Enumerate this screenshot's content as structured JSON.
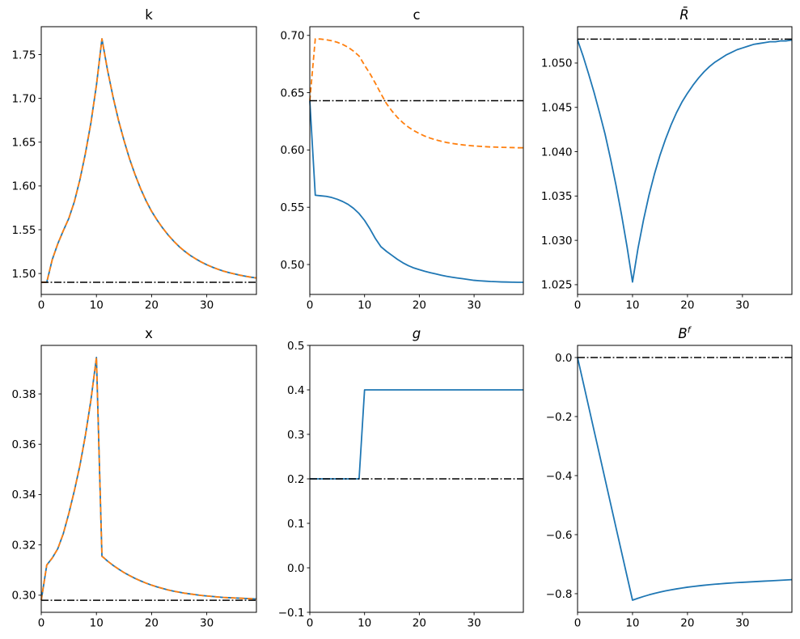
{
  "colors": {
    "series_blue": "#1f77b4",
    "series_orange": "#ff7f0e",
    "reference_black": "#000000",
    "axes": "#000000",
    "background": "#ffffff"
  },
  "x_values": [
    0,
    1,
    2,
    3,
    4,
    5,
    6,
    7,
    8,
    9,
    10,
    11,
    12,
    13,
    14,
    15,
    16,
    17,
    18,
    19,
    20,
    21,
    22,
    23,
    24,
    25,
    26,
    27,
    28,
    29,
    30,
    31,
    32,
    33,
    34,
    35,
    36,
    37,
    38,
    39
  ],
  "xticks": {
    "values": [
      0,
      10,
      20,
      30
    ],
    "labels": [
      "0",
      "10",
      "20",
      "30"
    ]
  },
  "chart_data": [
    {
      "id": "k",
      "type": "line",
      "title": {
        "text": "k",
        "superscript": "",
        "italic": false
      },
      "xlabel": "",
      "ylabel": "",
      "xlim": [
        0,
        39
      ],
      "ylim": [
        1.4761,
        1.7819
      ],
      "grid": false,
      "legend": false,
      "yticks": {
        "values": [
          1.5,
          1.55,
          1.6,
          1.65,
          1.7,
          1.75
        ],
        "labels": [
          "1.50",
          "1.55",
          "1.60",
          "1.65",
          "1.70",
          "1.75"
        ]
      },
      "reference": {
        "value": 1.49,
        "style": "dashdot",
        "color": "#000000"
      },
      "series": [
        {
          "name": "blue-solid",
          "color": "#1f77b4",
          "dash": false,
          "values": [
            1.49,
            1.49,
            1.516,
            1.534,
            1.549,
            1.563,
            1.582,
            1.607,
            1.637,
            1.672,
            1.715,
            1.768,
            1.7327,
            1.702,
            1.675,
            1.652,
            1.631,
            1.613,
            1.597,
            1.583,
            1.571,
            1.561,
            1.552,
            1.544,
            1.537,
            1.5307,
            1.5254,
            1.5207,
            1.5167,
            1.5131,
            1.51,
            1.5073,
            1.5049,
            1.5028,
            1.501,
            1.4995,
            1.4981,
            1.4969,
            1.4958,
            1.4949
          ]
        },
        {
          "name": "orange-dashed",
          "color": "#ff7f0e",
          "dash": true,
          "values": [
            1.49,
            1.49,
            1.516,
            1.534,
            1.549,
            1.563,
            1.582,
            1.607,
            1.637,
            1.672,
            1.715,
            1.768,
            1.7327,
            1.702,
            1.675,
            1.652,
            1.631,
            1.613,
            1.597,
            1.583,
            1.571,
            1.561,
            1.552,
            1.544,
            1.537,
            1.5307,
            1.5254,
            1.5207,
            1.5167,
            1.5131,
            1.51,
            1.5073,
            1.5049,
            1.5028,
            1.501,
            1.4995,
            1.4981,
            1.4969,
            1.4958,
            1.4949
          ]
        }
      ]
    },
    {
      "id": "c",
      "type": "line",
      "title": {
        "text": "c",
        "superscript": "",
        "italic": false
      },
      "xlabel": "",
      "ylabel": "",
      "xlim": [
        0,
        39
      ],
      "ylim": [
        0.4739,
        0.7076
      ],
      "grid": false,
      "legend": false,
      "yticks": {
        "values": [
          0.5,
          0.55,
          0.6,
          0.65,
          0.7
        ],
        "labels": [
          "0.50",
          "0.55",
          "0.60",
          "0.65",
          "0.70"
        ]
      },
      "reference": {
        "value": 0.643,
        "style": "dashdot",
        "color": "#000000"
      },
      "series": [
        {
          "name": "blue-solid",
          "color": "#1f77b4",
          "dash": false,
          "values": [
            0.643,
            0.5605,
            0.56,
            0.5595,
            0.5585,
            0.557,
            0.555,
            0.5525,
            0.549,
            0.5445,
            0.5385,
            0.531,
            0.5225,
            0.5155,
            0.5115,
            0.508,
            0.5045,
            0.5015,
            0.499,
            0.497,
            0.4955,
            0.4941,
            0.4929,
            0.4918,
            0.4907,
            0.4897,
            0.4889,
            0.4882,
            0.4876,
            0.4869,
            0.4862,
            0.4858,
            0.4855,
            0.4852,
            0.485,
            0.4848,
            0.4847,
            0.4846,
            0.4845,
            0.4845
          ]
        },
        {
          "name": "orange-dashed",
          "color": "#ff7f0e",
          "dash": true,
          "values": [
            0.643,
            0.697,
            0.6968,
            0.6962,
            0.6953,
            0.694,
            0.6921,
            0.6896,
            0.6862,
            0.682,
            0.674,
            0.6665,
            0.658,
            0.649,
            0.6405,
            0.634,
            0.6284,
            0.6238,
            0.62,
            0.6169,
            0.6143,
            0.6121,
            0.6103,
            0.6088,
            0.6076,
            0.6065,
            0.6057,
            0.605,
            0.6044,
            0.6039,
            0.6035,
            0.6032,
            0.6029,
            0.6026,
            0.6025,
            0.6023,
            0.6022,
            0.6021,
            0.6019,
            0.6019
          ]
        }
      ]
    },
    {
      "id": "Rbar",
      "type": "line",
      "title": {
        "text": "R̄",
        "superscript": "",
        "italic": true
      },
      "xlabel": "",
      "ylabel": "",
      "xlim": [
        0,
        39
      ],
      "ylim": [
        1.0239,
        1.0541
      ],
      "grid": false,
      "legend": false,
      "yticks": {
        "values": [
          1.025,
          1.03,
          1.035,
          1.04,
          1.045,
          1.05
        ],
        "labels": [
          "1.025",
          "1.030",
          "1.035",
          "1.040",
          "1.045",
          "1.050"
        ]
      },
      "reference": {
        "value": 1.0527,
        "style": "dashdot",
        "color": "#000000"
      },
      "series": [
        {
          "name": "blue-solid",
          "color": "#1f77b4",
          "dash": false,
          "values": [
            1.0526,
            1.0508,
            1.0488,
            1.0467,
            1.0444,
            1.042,
            1.0392,
            1.0362,
            1.0329,
            1.0293,
            1.0253,
            1.0291,
            1.0323,
            1.0351,
            1.0375,
            1.0396,
            1.0414,
            1.043,
            1.0444,
            1.0456,
            1.0466,
            1.0475,
            1.0483,
            1.049,
            1.0496,
            1.0501,
            1.0505,
            1.0509,
            1.0512,
            1.0515,
            1.0517,
            1.0519,
            1.0521,
            1.0522,
            1.0523,
            1.0524,
            1.0524,
            1.0525,
            1.0525,
            1.0526
          ]
        }
      ]
    },
    {
      "id": "x",
      "type": "line",
      "title": {
        "text": "x",
        "superscript": "",
        "italic": false
      },
      "xlabel": "",
      "ylabel": "",
      "xlim": [
        0,
        39
      ],
      "ylim": [
        0.2932,
        0.3993
      ],
      "grid": false,
      "legend": false,
      "yticks": {
        "values": [
          0.3,
          0.32,
          0.34,
          0.36,
          0.38
        ],
        "labels": [
          "0.30",
          "0.32",
          "0.34",
          "0.36",
          "0.38"
        ]
      },
      "reference": {
        "value": 0.298,
        "style": "dashdot",
        "color": "#000000"
      },
      "series": [
        {
          "name": "blue-solid",
          "color": "#1f77b4",
          "dash": false,
          "values": [
            0.298,
            0.312,
            0.3148,
            0.3185,
            0.3245,
            0.3325,
            0.3415,
            0.3515,
            0.3635,
            0.3775,
            0.3945,
            0.3155,
            0.3136,
            0.3119,
            0.3104,
            0.309,
            0.3078,
            0.3067,
            0.3057,
            0.3048,
            0.304,
            0.3033,
            0.3027,
            0.3021,
            0.3016,
            0.3012,
            0.3008,
            0.3005,
            0.3002,
            0.2999,
            0.2997,
            0.2995,
            0.2993,
            0.2991,
            0.299,
            0.2989,
            0.2988,
            0.2987,
            0.2986,
            0.2985
          ]
        },
        {
          "name": "orange-dashed",
          "color": "#ff7f0e",
          "dash": true,
          "values": [
            0.298,
            0.312,
            0.3148,
            0.3185,
            0.3245,
            0.3325,
            0.3415,
            0.3515,
            0.3635,
            0.3775,
            0.3945,
            0.3155,
            0.3136,
            0.3119,
            0.3104,
            0.309,
            0.3078,
            0.3067,
            0.3057,
            0.3048,
            0.304,
            0.3033,
            0.3027,
            0.3021,
            0.3016,
            0.3012,
            0.3008,
            0.3005,
            0.3002,
            0.2999,
            0.2997,
            0.2995,
            0.2993,
            0.2991,
            0.299,
            0.2989,
            0.2988,
            0.2987,
            0.2986,
            0.2985
          ]
        }
      ]
    },
    {
      "id": "g",
      "type": "line",
      "title": {
        "text": "g",
        "superscript": "",
        "italic": true
      },
      "xlabel": "",
      "ylabel": "",
      "xlim": [
        0,
        39
      ],
      "ylim": [
        -0.1,
        0.5
      ],
      "grid": false,
      "legend": false,
      "yticks": {
        "values": [
          -0.1,
          0.0,
          0.1,
          0.2,
          0.3,
          0.4,
          0.5
        ],
        "labels": [
          "−0.1",
          "0.0",
          "0.1",
          "0.2",
          "0.3",
          "0.4",
          "0.5"
        ]
      },
      "reference": {
        "value": 0.2,
        "style": "dashdot",
        "color": "#000000"
      },
      "series": [
        {
          "name": "blue-solid",
          "color": "#1f77b4",
          "dash": false,
          "values": [
            0.2,
            0.2,
            0.2,
            0.2,
            0.2,
            0.2,
            0.2,
            0.2,
            0.2,
            0.2,
            0.4,
            0.4,
            0.4,
            0.4,
            0.4,
            0.4,
            0.4,
            0.4,
            0.4,
            0.4,
            0.4,
            0.4,
            0.4,
            0.4,
            0.4,
            0.4,
            0.4,
            0.4,
            0.4,
            0.4,
            0.4,
            0.4,
            0.4,
            0.4,
            0.4,
            0.4,
            0.4,
            0.4,
            0.4,
            0.4
          ]
        }
      ]
    },
    {
      "id": "Bf",
      "type": "line",
      "title": {
        "text": "B",
        "superscript": "f",
        "italic": true
      },
      "xlabel": "",
      "ylabel": "",
      "xlim": [
        0,
        39
      ],
      "ylim": [
        -0.8631,
        0.0411
      ],
      "grid": false,
      "legend": false,
      "yticks": {
        "values": [
          -0.8,
          -0.6,
          -0.4,
          -0.2,
          0.0
        ],
        "labels": [
          "−0.8",
          "−0.6",
          "−0.4",
          "−0.2",
          "0.0"
        ]
      },
      "reference": {
        "value": 0.0,
        "style": "dashdot",
        "color": "#000000"
      },
      "series": [
        {
          "name": "blue-solid",
          "color": "#1f77b4",
          "dash": false,
          "values": [
            0.0,
            -0.082,
            -0.1645,
            -0.247,
            -0.329,
            -0.4115,
            -0.494,
            -0.5765,
            -0.6585,
            -0.7405,
            -0.822,
            -0.8155,
            -0.8095,
            -0.804,
            -0.799,
            -0.7945,
            -0.7905,
            -0.787,
            -0.7838,
            -0.7808,
            -0.778,
            -0.7757,
            -0.7735,
            -0.7715,
            -0.7697,
            -0.768,
            -0.7665,
            -0.765,
            -0.7637,
            -0.7625,
            -0.7615,
            -0.7605,
            -0.7595,
            -0.7585,
            -0.7575,
            -0.7565,
            -0.7555,
            -0.7545,
            -0.7535,
            -0.7525
          ]
        }
      ]
    }
  ]
}
